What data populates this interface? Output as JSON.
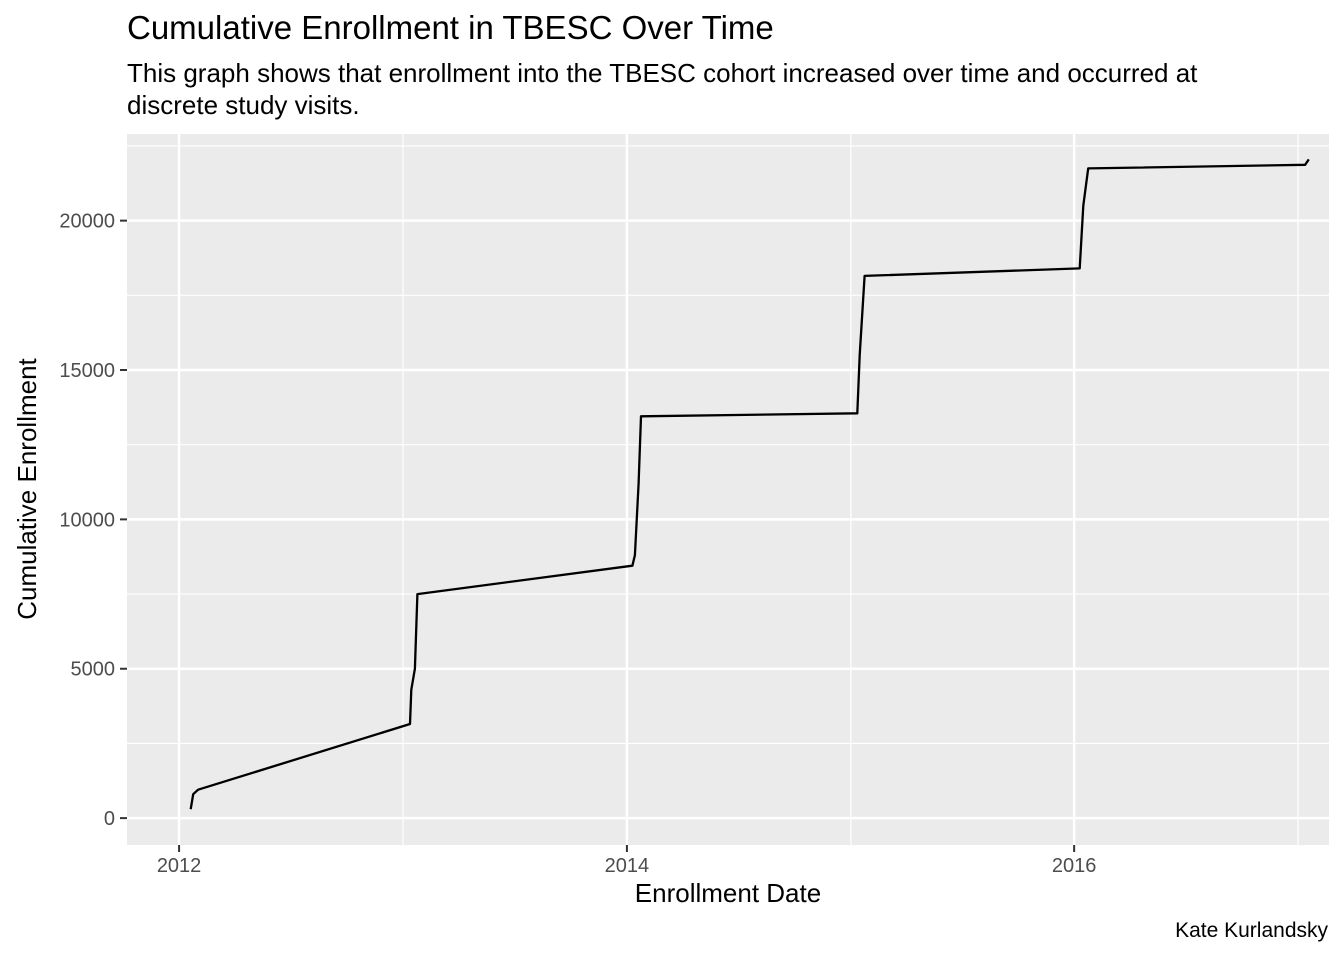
{
  "chart_data": {
    "type": "line",
    "title": "Cumulative Enrollment in TBESC Over Time",
    "subtitle": "This graph shows that enrollment into the TBESC cohort increased over time and occurred at discrete study visits.",
    "caption": "Kate Kurlandsky",
    "xlabel": "Enrollment Date",
    "ylabel": "Cumulative Enrollment",
    "xlim": [
      "2011-10-08",
      "2017-02-20"
    ],
    "ylim": [
      -900,
      22900
    ],
    "x_ticks": [
      {
        "date": "2012-01-01",
        "label": "2012"
      },
      {
        "date": "2014-01-01",
        "label": "2014"
      },
      {
        "date": "2016-01-01",
        "label": "2016"
      }
    ],
    "y_ticks": [
      0,
      5000,
      10000,
      15000,
      20000
    ],
    "grid": true,
    "series": [
      {
        "values": [
          {
            "x": "2012-01-20",
            "y": 300
          },
          {
            "x": "2012-01-24",
            "y": 800
          },
          {
            "x": "2012-02-01",
            "y": 950
          },
          {
            "x": "2013-01-12",
            "y": 3150
          },
          {
            "x": "2013-01-14",
            "y": 4300
          },
          {
            "x": "2013-01-20",
            "y": 5000
          },
          {
            "x": "2013-01-24",
            "y": 7500
          },
          {
            "x": "2014-01-10",
            "y": 8450
          },
          {
            "x": "2014-01-14",
            "y": 8800
          },
          {
            "x": "2014-01-20",
            "y": 11200
          },
          {
            "x": "2014-01-24",
            "y": 13450
          },
          {
            "x": "2015-01-12",
            "y": 13550
          },
          {
            "x": "2015-01-16",
            "y": 15500
          },
          {
            "x": "2015-01-24",
            "y": 18150
          },
          {
            "x": "2016-01-10",
            "y": 18400
          },
          {
            "x": "2016-01-16",
            "y": 20500
          },
          {
            "x": "2016-01-24",
            "y": 21750
          },
          {
            "x": "2017-01-12",
            "y": 21870
          },
          {
            "x": "2017-01-18",
            "y": 22050
          }
        ]
      }
    ]
  }
}
